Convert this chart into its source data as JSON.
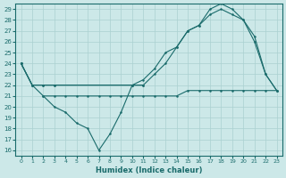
{
  "xlabel": "Humidex (Indice chaleur)",
  "bg_color": "#cce8e8",
  "grid_color": "#aad0d0",
  "line_color": "#1a6b6b",
  "xlim": [
    -0.5,
    23.5
  ],
  "ylim": [
    15.5,
    29.5
  ],
  "xticks": [
    0,
    1,
    2,
    3,
    4,
    5,
    6,
    7,
    8,
    9,
    10,
    11,
    12,
    13,
    14,
    15,
    16,
    17,
    18,
    19,
    20,
    21,
    22,
    23
  ],
  "yticks": [
    16,
    17,
    18,
    19,
    20,
    21,
    22,
    23,
    24,
    25,
    26,
    27,
    28,
    29
  ],
  "lines": [
    {
      "x": [
        0,
        1,
        2,
        3,
        4,
        5,
        6,
        7,
        8,
        9,
        10,
        11,
        12,
        13,
        14,
        15,
        16,
        17,
        18,
        19,
        20,
        21,
        22,
        23
      ],
      "y": [
        24,
        22,
        21,
        21,
        21,
        21,
        21,
        21,
        21,
        21,
        21,
        21,
        21,
        21,
        21,
        21.5,
        21.5,
        21.5,
        21.5,
        21.5,
        21.5,
        21.5,
        21.5,
        21.5
      ]
    },
    {
      "x": [
        2,
        3,
        4,
        5,
        6,
        7,
        8,
        9,
        10,
        11
      ],
      "y": [
        21,
        20,
        19.5,
        18.5,
        18,
        16,
        17.5,
        19.5,
        22,
        22
      ]
    },
    {
      "x": [
        0,
        1,
        2,
        3,
        10,
        11,
        12,
        13,
        14,
        15,
        16,
        17,
        18,
        19,
        20,
        21,
        22,
        23
      ],
      "y": [
        24,
        22,
        22,
        22,
        22,
        22.5,
        23.5,
        25,
        25.5,
        27,
        27.5,
        29,
        29.5,
        29,
        28,
        26.5,
        23,
        21.5
      ]
    },
    {
      "x": [
        0,
        1,
        2,
        3,
        10,
        11,
        12,
        13,
        14,
        15,
        16,
        17,
        18,
        19,
        20,
        21,
        22,
        23
      ],
      "y": [
        24,
        22,
        22,
        22,
        22,
        22,
        23,
        24,
        25.5,
        27,
        27.5,
        28.5,
        29,
        28.5,
        28,
        26,
        23,
        21.5
      ]
    }
  ]
}
